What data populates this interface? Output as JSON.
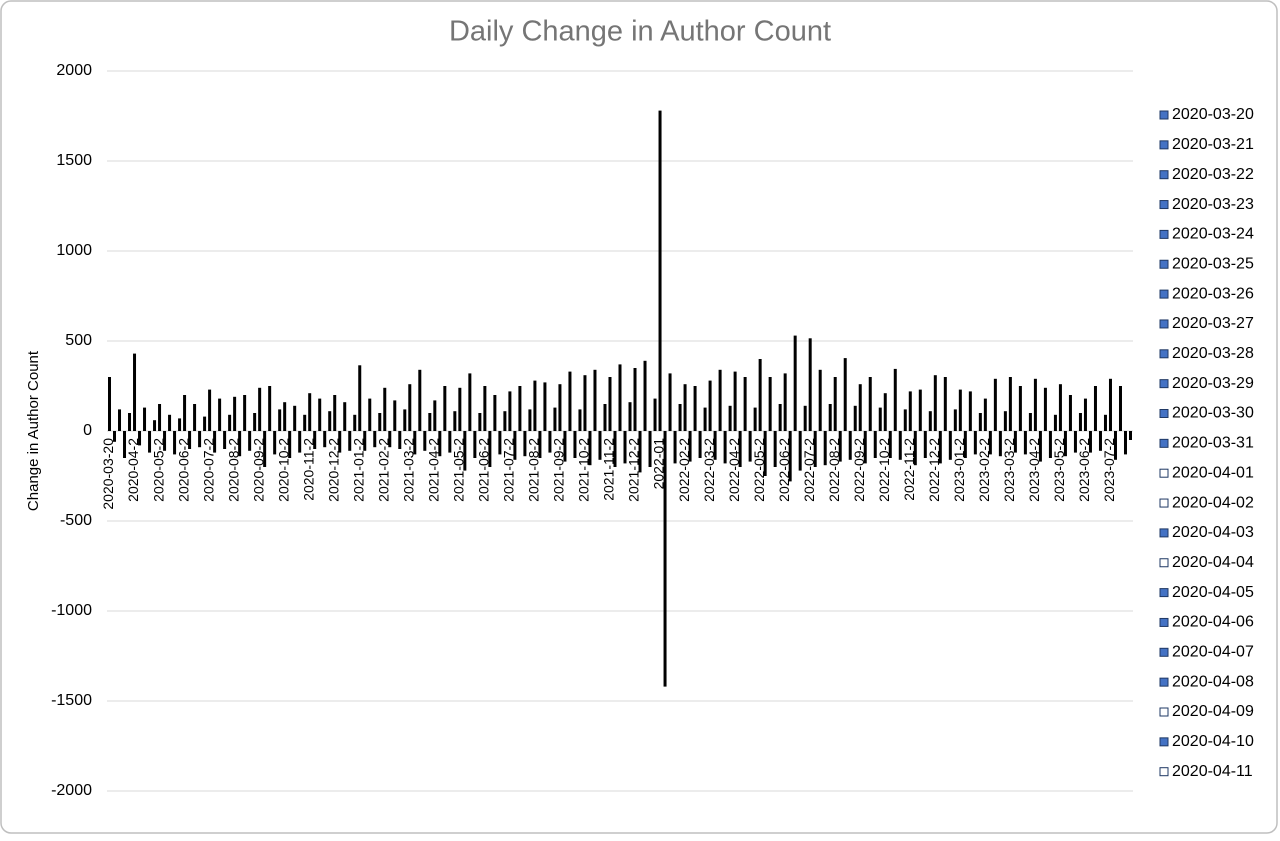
{
  "chart_data": {
    "type": "bar",
    "title": "Daily Change in Author Count",
    "y_axis_label": "Change in Author Count",
    "color": "#000000",
    "ylim": [
      -2000,
      2000
    ],
    "yticks": [
      -2000,
      -1500,
      -1000,
      -500,
      0,
      500,
      1000,
      1500,
      2000
    ],
    "grid": true,
    "categories": [
      "2020-03-20",
      null,
      null,
      null,
      null,
      "2020-04-2",
      null,
      null,
      null,
      null,
      "2020-05-2",
      null,
      null,
      null,
      null,
      "2020-06-2",
      null,
      null,
      null,
      null,
      "2020-07-2",
      null,
      null,
      null,
      null,
      "2020-08-2",
      null,
      null,
      null,
      null,
      "2020-09-2",
      null,
      null,
      null,
      null,
      "2020-10-2",
      null,
      null,
      null,
      null,
      "2020-11-2",
      null,
      null,
      null,
      null,
      "2020-12-2",
      null,
      null,
      null,
      null,
      "2021-01-2",
      null,
      null,
      null,
      null,
      "2021-02-2",
      null,
      null,
      null,
      null,
      "2021-03-2",
      null,
      null,
      null,
      null,
      "2021-04-2",
      null,
      null,
      null,
      null,
      "2021-05-2",
      null,
      null,
      null,
      null,
      "2021-06-2",
      null,
      null,
      null,
      null,
      "2021-07-2",
      null,
      null,
      null,
      null,
      "2021-08-2",
      null,
      null,
      null,
      null,
      "2021-09-2",
      null,
      null,
      null,
      null,
      "2021-10-2",
      null,
      null,
      null,
      null,
      "2021-11-2",
      null,
      null,
      null,
      null,
      "2021-12-2",
      null,
      null,
      null,
      null,
      "2022-01",
      null,
      null,
      null,
      null,
      "2022-02-2",
      null,
      null,
      null,
      null,
      "2022-03-2",
      null,
      null,
      null,
      null,
      "2022-04-2",
      null,
      null,
      null,
      null,
      "2022-05-2",
      null,
      null,
      null,
      null,
      "2022-06-2",
      null,
      null,
      null,
      null,
      "2022-07-2",
      null,
      null,
      null,
      null,
      "2022-08-2",
      null,
      null,
      null,
      null,
      "2022-09-2",
      null,
      null,
      null,
      null,
      "2022-10-2",
      null,
      null,
      null,
      null,
      "2022-11-2",
      null,
      null,
      null,
      null,
      "2022-12-2",
      null,
      null,
      null,
      null,
      "2023-01-2",
      null,
      null,
      null,
      null,
      "2023-02-2",
      null,
      null,
      null,
      null,
      "2023-03-2",
      null,
      null,
      null,
      null,
      "2023-04-2",
      null,
      null,
      null,
      null,
      "2023-05-2",
      null,
      null,
      null,
      null,
      "2023-06-2",
      null,
      null,
      null,
      null,
      "2023-07-2",
      null,
      null,
      null,
      null
    ],
    "values": [
      300,
      -60,
      120,
      -150,
      100,
      430,
      -80,
      130,
      -120,
      60,
      150,
      -110,
      90,
      -130,
      70,
      200,
      -100,
      150,
      -90,
      80,
      230,
      -120,
      180,
      -100,
      90,
      190,
      -140,
      200,
      -110,
      100,
      240,
      -200,
      250,
      -130,
      120,
      160,
      -150,
      140,
      -120,
      90,
      210,
      -100,
      180,
      -90,
      110,
      200,
      -120,
      160,
      -110,
      90,
      365,
      -110,
      180,
      -90,
      100,
      240,
      -90,
      170,
      -100,
      120,
      260,
      -130,
      340,
      -110,
      100,
      170,
      -140,
      250,
      -120,
      110,
      240,
      -220,
      320,
      -150,
      100,
      250,
      -200,
      200,
      -130,
      110,
      220,
      -160,
      250,
      -140,
      120,
      280,
      -150,
      270,
      -120,
      130,
      260,
      -170,
      330,
      -150,
      120,
      310,
      -190,
      340,
      -160,
      150,
      300,
      -200,
      370,
      -180,
      160,
      350,
      -230,
      390,
      -200,
      180,
      1780,
      -1420,
      320,
      -180,
      150,
      260,
      -170,
      250,
      -150,
      130,
      280,
      -160,
      340,
      -180,
      140,
      330,
      -200,
      300,
      -170,
      130,
      400,
      -250,
      300,
      -200,
      150,
      320,
      -280,
      530,
      -220,
      140,
      515,
      -200,
      340,
      -190,
      150,
      300,
      -170,
      405,
      -160,
      140,
      260,
      -180,
      300,
      -150,
      130,
      210,
      -150,
      345,
      -160,
      120,
      220,
      -190,
      230,
      -150,
      110,
      310,
      -180,
      300,
      -160,
      120,
      230,
      -150,
      220,
      -130,
      100,
      180,
      -130,
      290,
      -140,
      110,
      300,
      -120,
      250,
      -130,
      100,
      290,
      -170,
      240,
      -150,
      90,
      260,
      -140,
      200,
      -120,
      100,
      180,
      -120,
      250,
      -110,
      90,
      290,
      -160,
      250,
      -130,
      -50
    ],
    "legend": [
      {
        "label": "2020-03-20",
        "color": "#4472c4"
      },
      {
        "label": "2020-03-21",
        "color": "#4472c4"
      },
      {
        "label": "2020-03-22",
        "color": "#4472c4"
      },
      {
        "label": "2020-03-23",
        "color": "#4472c4"
      },
      {
        "label": "2020-03-24",
        "color": "#4472c4"
      },
      {
        "label": "2020-03-25",
        "color": "#4472c4"
      },
      {
        "label": "2020-03-26",
        "color": "#4472c4"
      },
      {
        "label": "2020-03-27",
        "color": "#4472c4"
      },
      {
        "label": "2020-03-28",
        "color": "#4472c4"
      },
      {
        "label": "2020-03-29",
        "color": "#4472c4"
      },
      {
        "label": "2020-03-30",
        "color": "#4472c4"
      },
      {
        "label": "2020-03-31",
        "color": "#4472c4"
      },
      {
        "label": "2020-04-01",
        "color": "#ffffff"
      },
      {
        "label": "2020-04-02",
        "color": "#ffffff"
      },
      {
        "label": "2020-04-03",
        "color": "#4472c4"
      },
      {
        "label": "2020-04-04",
        "color": "#ffffff"
      },
      {
        "label": "2020-04-05",
        "color": "#4472c4"
      },
      {
        "label": "2020-04-06",
        "color": "#4472c4"
      },
      {
        "label": "2020-04-07",
        "color": "#4472c4"
      },
      {
        "label": "2020-04-08",
        "color": "#4472c4"
      },
      {
        "label": "2020-04-09",
        "color": "#ffffff"
      },
      {
        "label": "2020-04-10",
        "color": "#4472c4"
      },
      {
        "label": "2020-04-11",
        "color": "#ffffff"
      }
    ]
  }
}
